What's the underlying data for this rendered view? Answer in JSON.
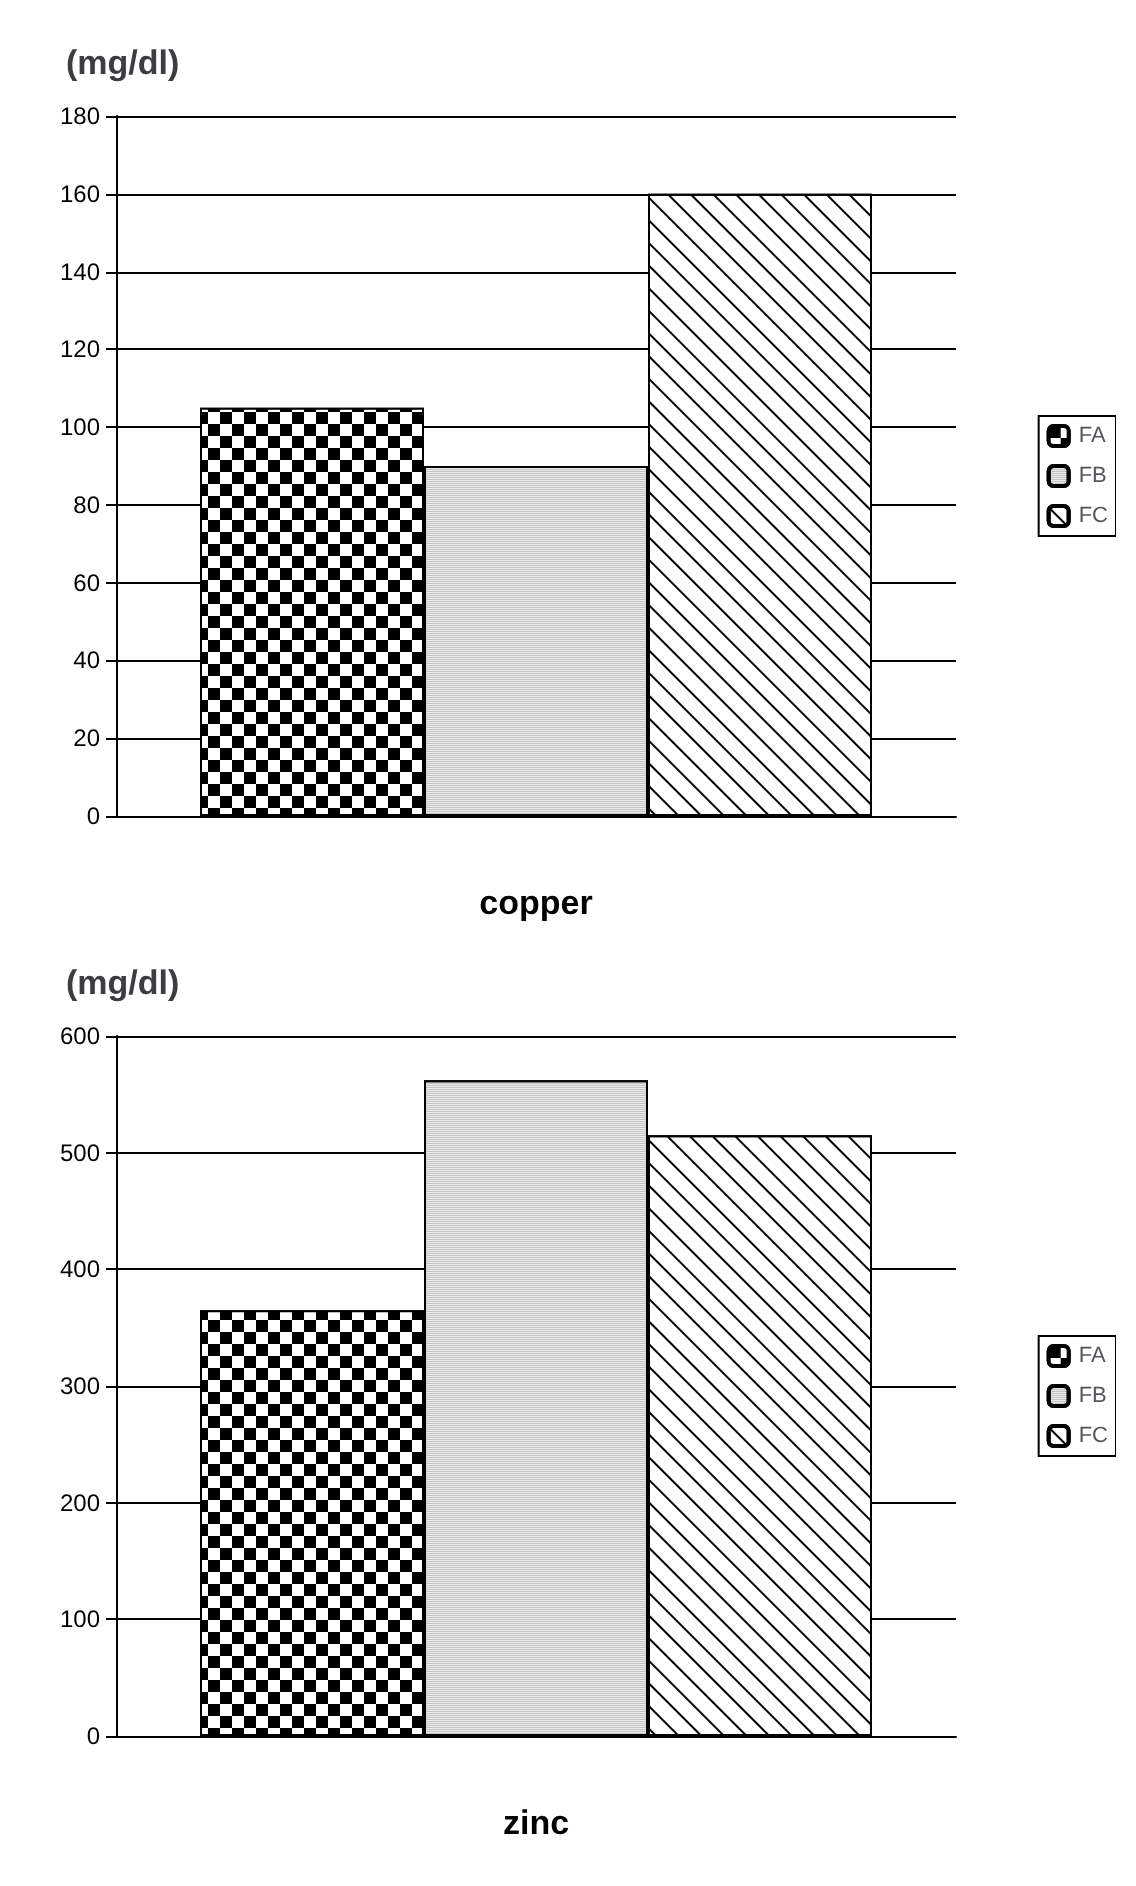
{
  "chart_data": [
    {
      "type": "bar",
      "ylabel": "(mg/dl)",
      "xlabel": "copper",
      "categories": [
        null
      ],
      "series": [
        {
          "name": "FA",
          "color": "#000000",
          "values": [
            105
          ]
        },
        {
          "name": "FB",
          "color": "#ffffff",
          "values": [
            90
          ]
        },
        {
          "name": "FC",
          "color": "#ffffff",
          "values": [
            160
          ]
        }
      ],
      "ylim": [
        0,
        180
      ],
      "yticks": [
        0,
        20,
        40,
        60,
        80,
        100,
        120,
        140,
        160,
        180
      ],
      "grid": "y",
      "legend": "right"
    },
    {
      "type": "bar",
      "ylabel": "(mg/dl)",
      "xlabel": "zinc",
      "categories": [
        null
      ],
      "series": [
        {
          "name": "FA",
          "color": "#000000",
          "values": [
            365
          ]
        },
        {
          "name": "FB",
          "color": "#ffffff",
          "values": [
            562
          ]
        },
        {
          "name": "FC",
          "color": "#ffffff",
          "values": [
            515
          ]
        }
      ],
      "ylim": [
        0,
        600
      ],
      "yticks": [
        0,
        100,
        200,
        300,
        400,
        500,
        600
      ],
      "grid": "y",
      "legend": "right"
    }
  ]
}
